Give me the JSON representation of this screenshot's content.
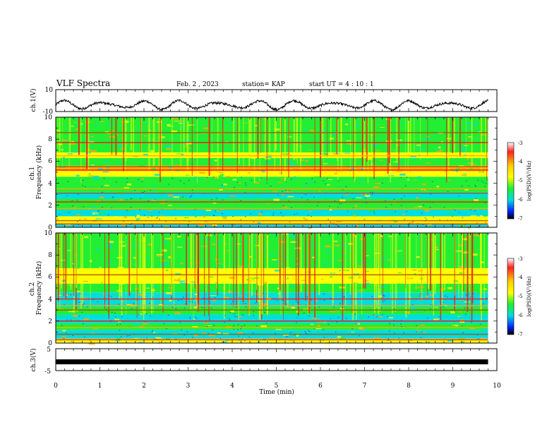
{
  "header": {
    "title": "VLF Spectra",
    "date": "Feb. 2 , 2023",
    "station": "station= KAP",
    "start": "start UT =   4 : 10 : 1"
  },
  "chart_data": [
    {
      "type": "line",
      "panel": "ch1-waveform",
      "ylabel": "ch.1(V)",
      "ylim": [
        -10,
        10
      ],
      "yticks": [
        "10",
        "-10"
      ],
      "xlim": [
        0,
        10
      ],
      "x_end": 9.8,
      "color": "#000000"
    },
    {
      "type": "heatmap",
      "panel": "ch1-spectrogram",
      "ylabel": "ch.1\nFrequency  (kHz)",
      "ylim": [
        0,
        10
      ],
      "yticks": [
        "0",
        "2",
        "4",
        "6",
        "8",
        "10"
      ],
      "xlim": [
        0,
        10
      ],
      "x_end": 9.8,
      "bands_khz": [
        0.3,
        0.6,
        1.7,
        2.3,
        3.1,
        3.5,
        5.2,
        5.5,
        6.5,
        7.7,
        8.6
      ],
      "colorbar": {
        "label": "log(PSD)(V²/Hz)",
        "range": [
          -7,
          -3
        ],
        "ticks": [
          "-3",
          "-4",
          "-5",
          "-6",
          "-7"
        ]
      }
    },
    {
      "type": "heatmap",
      "panel": "ch2-spectrogram",
      "ylabel": "ch.2\nFrequency  (kHz)",
      "ylim": [
        0,
        10
      ],
      "yticks": [
        "0",
        "2",
        "4",
        "6",
        "8",
        "10"
      ],
      "xlim": [
        0,
        10
      ],
      "x_end": 9.8,
      "bands_khz": [
        0.3,
        0.8,
        1.4,
        2.0,
        3.0,
        3.4,
        4.0,
        6.2
      ],
      "colorbar": {
        "label": "log(PSD)(V²/Hz)",
        "range": [
          -7,
          -3
        ],
        "ticks": [
          "-3",
          "-4",
          "-5",
          "-6",
          "-7"
        ]
      }
    },
    {
      "type": "line",
      "panel": "ch3-waveform",
      "ylabel": "ch.3(V)",
      "ylim": [
        -5,
        5
      ],
      "yticks": [
        "5",
        "-5"
      ],
      "xlim": [
        0,
        10
      ],
      "x_end": 9.8,
      "level": -1,
      "color": "#000000"
    }
  ],
  "xaxis": {
    "label": "Time  (min)",
    "ticks": [
      "0",
      "1",
      "2",
      "3",
      "4",
      "5",
      "6",
      "7",
      "8",
      "9",
      "10"
    ]
  },
  "colors": {
    "green": "#22ee33",
    "yellow": "#ffff00",
    "orange": "#ffaa00",
    "red": "#ff1111",
    "cyan": "#00dddd",
    "blue": "#0011ff"
  }
}
